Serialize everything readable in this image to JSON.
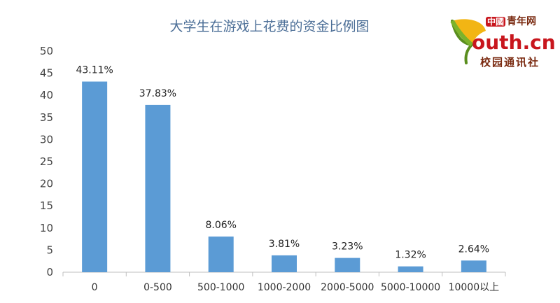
{
  "chart_data": {
    "type": "bar",
    "title": "大学生在游戏上花费的资金比例图",
    "categories": [
      "0",
      "0-500",
      "500-1000",
      "1000-2000",
      "2000-5000",
      "5000-10000",
      "10000以上"
    ],
    "values": [
      43.11,
      37.83,
      8.06,
      3.81,
      3.23,
      1.32,
      2.64
    ],
    "data_labels": [
      "43.11%",
      "37.83%",
      "8.06%",
      "3.81%",
      "3.23%",
      "1.32%",
      "2.64%"
    ],
    "yticks": [
      "0",
      "5",
      "10",
      "15",
      "20",
      "25",
      "30",
      "35",
      "40",
      "45",
      "50"
    ],
    "ylim": [
      0,
      50
    ],
    "xlabel": "",
    "ylabel": "",
    "grid": false,
    "bar_color": "#5b9bd5"
  },
  "logo": {
    "top_badge": "中國",
    "top_text": "青年网",
    "main_text": "outh.cn",
    "bottom_text": "校园通讯社",
    "leaf_icon": "ginkgo-leaf-icon"
  }
}
